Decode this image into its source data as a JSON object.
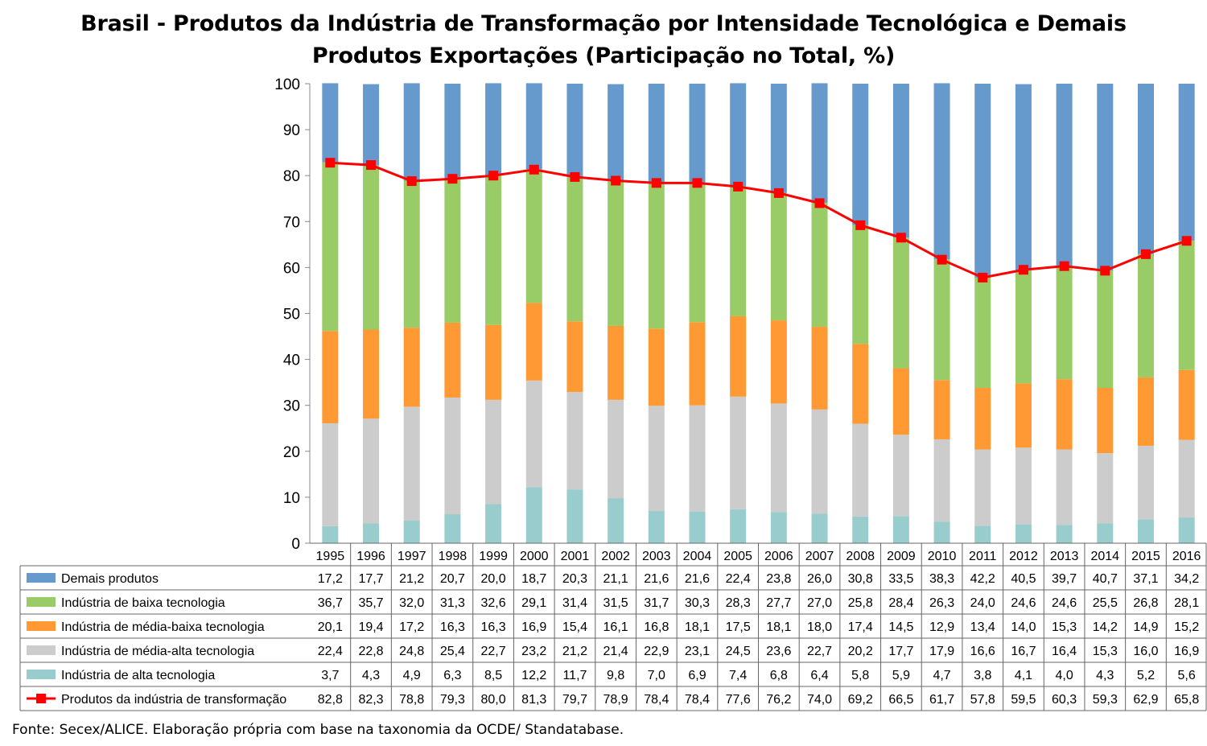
{
  "chart_data": {
    "type": "bar",
    "title": "Brasil - Produtos da Indústria de Transformação por Intensidade Tecnológica e Demais Produtos Exportações (Participação no Total, %)",
    "title_lines": [
      "Brasil - Produtos da Indústria de Transformação por Intensidade Tecnológica e Demais",
      "Produtos Exportações (Participação no Total, %)"
    ],
    "stacked": true,
    "ylim": [
      0,
      100
    ],
    "yticks": [
      "0",
      "10",
      "20",
      "30",
      "40",
      "50",
      "60",
      "70",
      "80",
      "90",
      "100"
    ],
    "grid": false,
    "legend": "data-table",
    "categories": [
      "1995",
      "1996",
      "1997",
      "1998",
      "1999",
      "2000",
      "2001",
      "2002",
      "2003",
      "2004",
      "2005",
      "2006",
      "2007",
      "2008",
      "2009",
      "2010",
      "2011",
      "2012",
      "2013",
      "2014",
      "2015",
      "2016"
    ],
    "series": [
      {
        "name": "Demais produtos",
        "type": "bar",
        "color": "#6699cc",
        "values": [
          17.2,
          17.7,
          21.2,
          20.7,
          20.0,
          18.7,
          20.3,
          21.1,
          21.6,
          21.6,
          22.4,
          23.8,
          26.0,
          30.8,
          33.5,
          38.3,
          42.2,
          40.5,
          39.7,
          40.7,
          37.1,
          34.2
        ],
        "labels": [
          "17,2",
          "17,7",
          "21,2",
          "20,7",
          "20,0",
          "18,7",
          "20,3",
          "21,1",
          "21,6",
          "21,6",
          "22,4",
          "23,8",
          "26,0",
          "30,8",
          "33,5",
          "38,3",
          "42,2",
          "40,5",
          "39,7",
          "40,7",
          "37,1",
          "34,2"
        ]
      },
      {
        "name": "Indústria de baixa tecnologia",
        "type": "bar",
        "color": "#99cc66",
        "values": [
          36.7,
          35.7,
          32.0,
          31.3,
          32.6,
          29.1,
          31.4,
          31.5,
          31.7,
          30.3,
          28.3,
          27.7,
          27.0,
          25.8,
          28.4,
          26.3,
          24.0,
          24.6,
          24.6,
          25.5,
          26.8,
          28.1
        ],
        "labels": [
          "36,7",
          "35,7",
          "32,0",
          "31,3",
          "32,6",
          "29,1",
          "31,4",
          "31,5",
          "31,7",
          "30,3",
          "28,3",
          "27,7",
          "27,0",
          "25,8",
          "28,4",
          "26,3",
          "24,0",
          "24,6",
          "24,6",
          "25,5",
          "26,8",
          "28,1"
        ]
      },
      {
        "name": "Indústria de média-baixa tecnologia",
        "type": "bar",
        "color": "#ff9933",
        "values": [
          20.1,
          19.4,
          17.2,
          16.3,
          16.3,
          16.9,
          15.4,
          16.1,
          16.8,
          18.1,
          17.5,
          18.1,
          18.0,
          17.4,
          14.5,
          12.9,
          13.4,
          14.0,
          15.3,
          14.2,
          14.9,
          15.2
        ],
        "labels": [
          "20,1",
          "19,4",
          "17,2",
          "16,3",
          "16,3",
          "16,9",
          "15,4",
          "16,1",
          "16,8",
          "18,1",
          "17,5",
          "18,1",
          "18,0",
          "17,4",
          "14,5",
          "12,9",
          "13,4",
          "14,0",
          "15,3",
          "14,2",
          "14,9",
          "15,2"
        ]
      },
      {
        "name": "Indústria de média-alta tecnologia",
        "type": "bar",
        "color": "#cccccc",
        "values": [
          22.4,
          22.8,
          24.8,
          25.4,
          22.7,
          23.2,
          21.2,
          21.4,
          22.9,
          23.1,
          24.5,
          23.6,
          22.7,
          20.2,
          17.7,
          17.9,
          16.6,
          16.7,
          16.4,
          15.3,
          16.0,
          16.9
        ],
        "labels": [
          "22,4",
          "22,8",
          "24,8",
          "25,4",
          "22,7",
          "23,2",
          "21,2",
          "21,4",
          "22,9",
          "23,1",
          "24,5",
          "23,6",
          "22,7",
          "20,2",
          "17,7",
          "17,9",
          "16,6",
          "16,7",
          "16,4",
          "15,3",
          "16,0",
          "16,9"
        ]
      },
      {
        "name": "Indústria de alta tecnologia",
        "type": "bar",
        "color": "#99cccc",
        "values": [
          3.7,
          4.3,
          4.9,
          6.3,
          8.5,
          12.2,
          11.7,
          9.8,
          7.0,
          6.9,
          7.4,
          6.8,
          6.4,
          5.8,
          5.9,
          4.7,
          3.8,
          4.1,
          4.0,
          4.3,
          5.2,
          5.6
        ],
        "labels": [
          "3,7",
          "4,3",
          "4,9",
          "6,3",
          "8,5",
          "12,2",
          "11,7",
          "9,8",
          "7,0",
          "6,9",
          "7,4",
          "6,8",
          "6,4",
          "5,8",
          "5,9",
          "4,7",
          "3,8",
          "4,1",
          "4,0",
          "4,3",
          "5,2",
          "5,6"
        ]
      },
      {
        "name": "Produtos da indústria de transformação",
        "type": "line",
        "color": "#ff0000",
        "values": [
          82.8,
          82.3,
          78.8,
          79.3,
          80.0,
          81.3,
          79.7,
          78.9,
          78.4,
          78.4,
          77.6,
          76.2,
          74.0,
          69.2,
          66.5,
          61.7,
          57.8,
          59.5,
          60.3,
          59.3,
          62.9,
          65.8
        ],
        "labels": [
          "82,8",
          "82,3",
          "78,8",
          "79,3",
          "80,0",
          "81,3",
          "79,7",
          "78,9",
          "78,4",
          "78,4",
          "77,6",
          "76,2",
          "74,0",
          "69,2",
          "66,5",
          "61,7",
          "57,8",
          "59,5",
          "60,3",
          "59,3",
          "62,9",
          "65,8"
        ]
      }
    ],
    "stack_order_bottom_to_top": [
      4,
      3,
      2,
      1,
      0
    ]
  },
  "source_note": "Fonte: Secex/ALICE. Elaboração própria com base na taxonomia da OCDE/ Standatabase."
}
